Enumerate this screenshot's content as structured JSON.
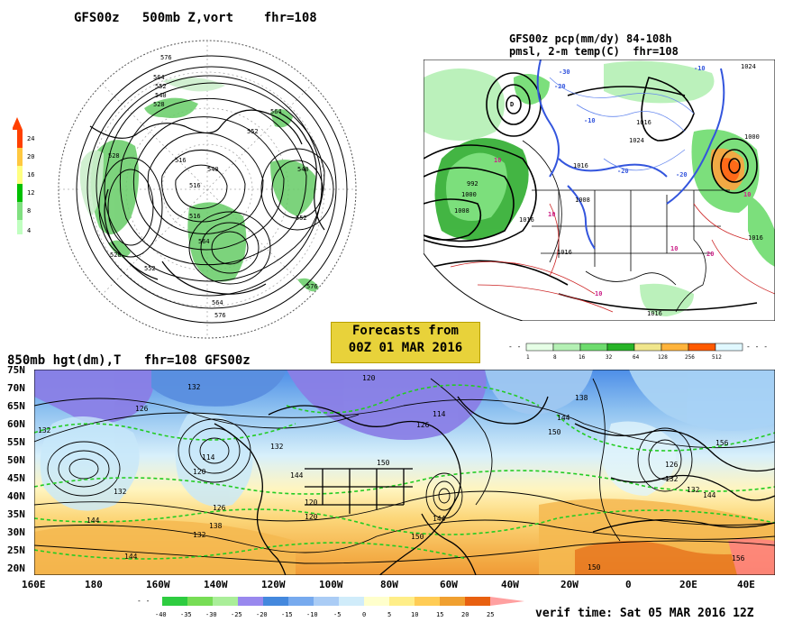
{
  "panel_polar": {
    "title": "GFS00z   500mb Z,vort    fhr=108",
    "contour_labels": [
      "576",
      "564",
      "552",
      "540",
      "528",
      "516",
      "552",
      "564",
      "528",
      "540",
      "516",
      "576",
      "564",
      "576",
      "552",
      "540",
      "552",
      "516",
      "528",
      "564"
    ],
    "colorbar": {
      "labels": [
        "24",
        "20",
        "16",
        "12",
        "8",
        "4"
      ],
      "colors": [
        "#ff4000",
        "#ffc840",
        "#ffff80",
        "#00c000",
        "#80e080",
        "#c0ffc0"
      ]
    }
  },
  "panel_na": {
    "title_line1": "GFS00z pcp(mm/dy) 84-108h",
    "title_line2": "pmsl, 2-m temp(C)  fhr=108",
    "contour_labels": [
      "1024",
      "1016",
      "1024",
      "1000",
      "1016",
      "1008",
      "992",
      "1000",
      "1008",
      "1016",
      "1016",
      "1016",
      "1016"
    ],
    "temp_labels": [
      "-30",
      "-20",
      "-20",
      "-10",
      "-10",
      "-20",
      "10",
      "10",
      "10",
      "10",
      "10",
      "20"
    ],
    "colorbar": {
      "labels": [
        "1",
        "8",
        "16",
        "32",
        "64",
        "128",
        "256",
        "512"
      ],
      "colors": [
        "#e6ffe6",
        "#b4f0b4",
        "#6edc6e",
        "#28b428",
        "#f0e68c",
        "#ffb43c",
        "#ff5a00",
        "#ffd2c8",
        "#e0f8ff"
      ]
    }
  },
  "forecast": {
    "line1": "Forecasts from",
    "line2": "00Z 01 MAR 2016"
  },
  "panel_850": {
    "title": "850mb hgt(dm),T   fhr=108 GFS00z",
    "lat_labels": [
      "75N",
      "70N",
      "65N",
      "60N",
      "55N",
      "50N",
      "45N",
      "40N",
      "35N",
      "30N",
      "25N",
      "20N"
    ],
    "lon_labels": [
      "160E",
      "180",
      "160W",
      "140W",
      "120W",
      "100W",
      "80W",
      "60W",
      "40W",
      "20W",
      "0",
      "20E",
      "40E"
    ],
    "contour_labels": [
      "132",
      "120",
      "114",
      "132",
      "120",
      "132",
      "144",
      "126",
      "126",
      "144",
      "120",
      "132",
      "138",
      "114",
      "126",
      "150",
      "144",
      "150",
      "156",
      "132",
      "144",
      "156",
      "150",
      "150",
      "144",
      "138",
      "132",
      "144",
      "120",
      "126",
      "132"
    ],
    "colorbar": {
      "labels": [
        "-40",
        "-35",
        "-30",
        "-25",
        "-20",
        "-15",
        "-10",
        "-5",
        "0",
        "5",
        "10",
        "15",
        "20",
        "25"
      ],
      "colors": [
        "#2ecc40",
        "#77dd55",
        "#aaee99",
        "#9988ee",
        "#4488dd",
        "#77aaee",
        "#aaccf5",
        "#d0ecfa",
        "#ffffcc",
        "#ffee88",
        "#ffcc55",
        "#f0a030",
        "#e86010",
        "#ffa0a0"
      ]
    }
  },
  "verif": "verif time: Sat 05 MAR 2016 12Z"
}
